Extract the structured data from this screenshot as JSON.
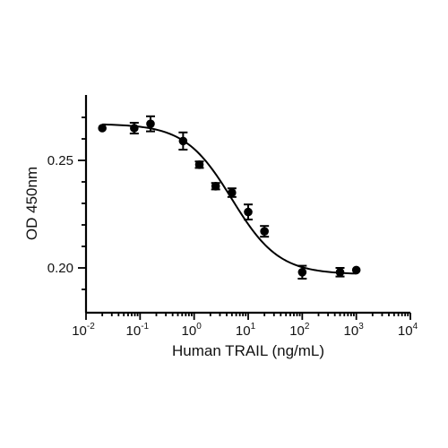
{
  "chart_data": {
    "type": "scatter",
    "x_scale": "log",
    "xlabel": "Human TRAIL (ng/mL)",
    "ylabel": "OD 450nm",
    "xlim": [
      0.01,
      10000
    ],
    "ylim": [
      0.18,
      0.28
    ],
    "x_ticks": [
      {
        "base": "10",
        "exp": "-2"
      },
      {
        "base": "10",
        "exp": "-1"
      },
      {
        "base": "10",
        "exp": "0"
      },
      {
        "base": "10",
        "exp": "1"
      },
      {
        "base": "10",
        "exp": "2"
      },
      {
        "base": "10",
        "exp": "3"
      },
      {
        "base": "10",
        "exp": "4"
      }
    ],
    "y_ticks": [
      "0.20",
      "0.25"
    ],
    "y_tick_values": [
      0.2,
      0.25
    ],
    "grid": false,
    "legend": "none",
    "series": [
      {
        "x": [
          0.02,
          0.078,
          0.156,
          0.625,
          1.25,
          2.5,
          5,
          10,
          20,
          100,
          500,
          1000
        ],
        "y": [
          0.265,
          0.265,
          0.267,
          0.259,
          0.248,
          0.238,
          0.235,
          0.226,
          0.217,
          0.198,
          0.198,
          0.199
        ],
        "yerr": [
          0.0,
          0.0025,
          0.0035,
          0.004,
          0.0015,
          0.0015,
          0.002,
          0.0035,
          0.0025,
          0.003,
          0.002,
          0.0
        ]
      }
    ],
    "fit_curve": {
      "type": "4PL",
      "top": 0.267,
      "bottom": 0.197,
      "ec50": 5,
      "hill": 1.0
    }
  }
}
